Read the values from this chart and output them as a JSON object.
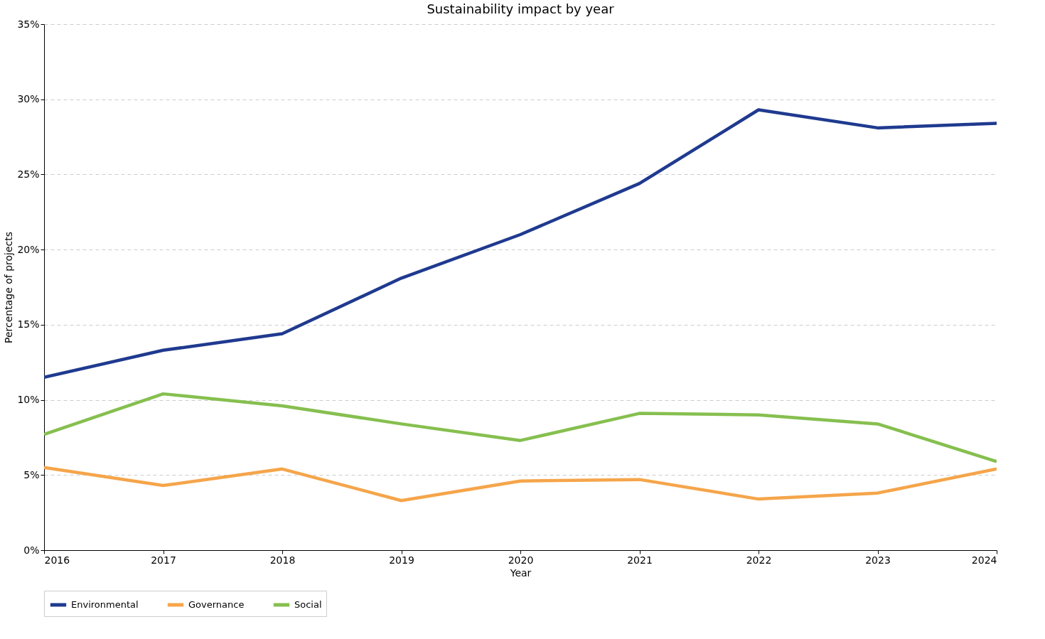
{
  "chart_data": {
    "type": "line",
    "title": "Sustainability impact by year",
    "xlabel": "Year",
    "ylabel": "Percentage of projects",
    "x": [
      2016,
      2017,
      2018,
      2019,
      2020,
      2021,
      2022,
      2023,
      2024
    ],
    "series": [
      {
        "name": "Environmental",
        "color": "#1f3a8f",
        "values": [
          11.5,
          13.3,
          14.4,
          18.1,
          21.0,
          24.4,
          29.3,
          28.1,
          28.4
        ]
      },
      {
        "name": "Governance",
        "color": "#f5a54a",
        "values": [
          5.5,
          4.3,
          5.4,
          3.3,
          4.6,
          4.7,
          3.4,
          3.8,
          5.4
        ]
      },
      {
        "name": "Social",
        "color": "#86bf4f",
        "values": [
          7.7,
          10.4,
          9.6,
          8.4,
          7.3,
          9.1,
          9.0,
          8.4,
          5.9
        ]
      }
    ],
    "xlim": [
      2016,
      2024
    ],
    "xticks": [
      2016,
      2017,
      2018,
      2019,
      2020,
      2021,
      2022,
      2023,
      2024
    ],
    "ylim": [
      0,
      35
    ],
    "yticks": [
      {
        "value": 0,
        "label": "0%"
      },
      {
        "value": 5,
        "label": "5%"
      },
      {
        "value": 10,
        "label": "10%"
      },
      {
        "value": 15,
        "label": "15%"
      },
      {
        "value": 20,
        "label": "20%"
      },
      {
        "value": 25,
        "label": "25%"
      },
      {
        "value": 30,
        "label": "30%"
      },
      {
        "value": 35,
        "label": "35%"
      }
    ],
    "grid": "y",
    "legend": "bottom",
    "line_style": "solid",
    "marker": "none"
  }
}
